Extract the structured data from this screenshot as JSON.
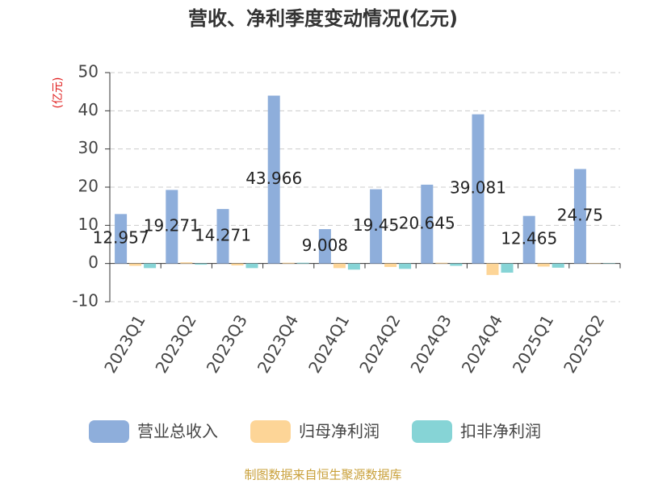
{
  "chart_data": {
    "type": "bar",
    "title": "营收、净利季度变动情况(亿元)",
    "y_label": "(亿元)",
    "source": "制图数据来自恒生聚源数据库",
    "categories": [
      "2023Q1",
      "2023Q2",
      "2023Q3",
      "2023Q4",
      "2024Q1",
      "2024Q2",
      "2024Q3",
      "2024Q4",
      "2025Q1",
      "2025Q2"
    ],
    "series": [
      {
        "name": "营业总收入",
        "color": "#8eaedb",
        "values": [
          12.957,
          19.271,
          14.271,
          43.966,
          9.008,
          19.45,
          20.645,
          39.081,
          12.465,
          24.75
        ],
        "show_labels": true
      },
      {
        "name": "归母净利润",
        "color": "#fdd597",
        "values": [
          -0.6,
          0.3,
          -0.5,
          0.2,
          -1.2,
          -0.9,
          0.2,
          -3.0,
          -0.8,
          0.1
        ]
      },
      {
        "name": "扣非净利润",
        "color": "#86d4d6",
        "values": [
          -1.2,
          -0.3,
          -1.2,
          0.2,
          -1.6,
          -1.4,
          -0.6,
          -2.4,
          -1.1,
          0.1
        ]
      }
    ],
    "ylim": [
      -10,
      50
    ],
    "yticks": [
      -10,
      0,
      10,
      20,
      30,
      40,
      50
    ],
    "grid": true
  }
}
